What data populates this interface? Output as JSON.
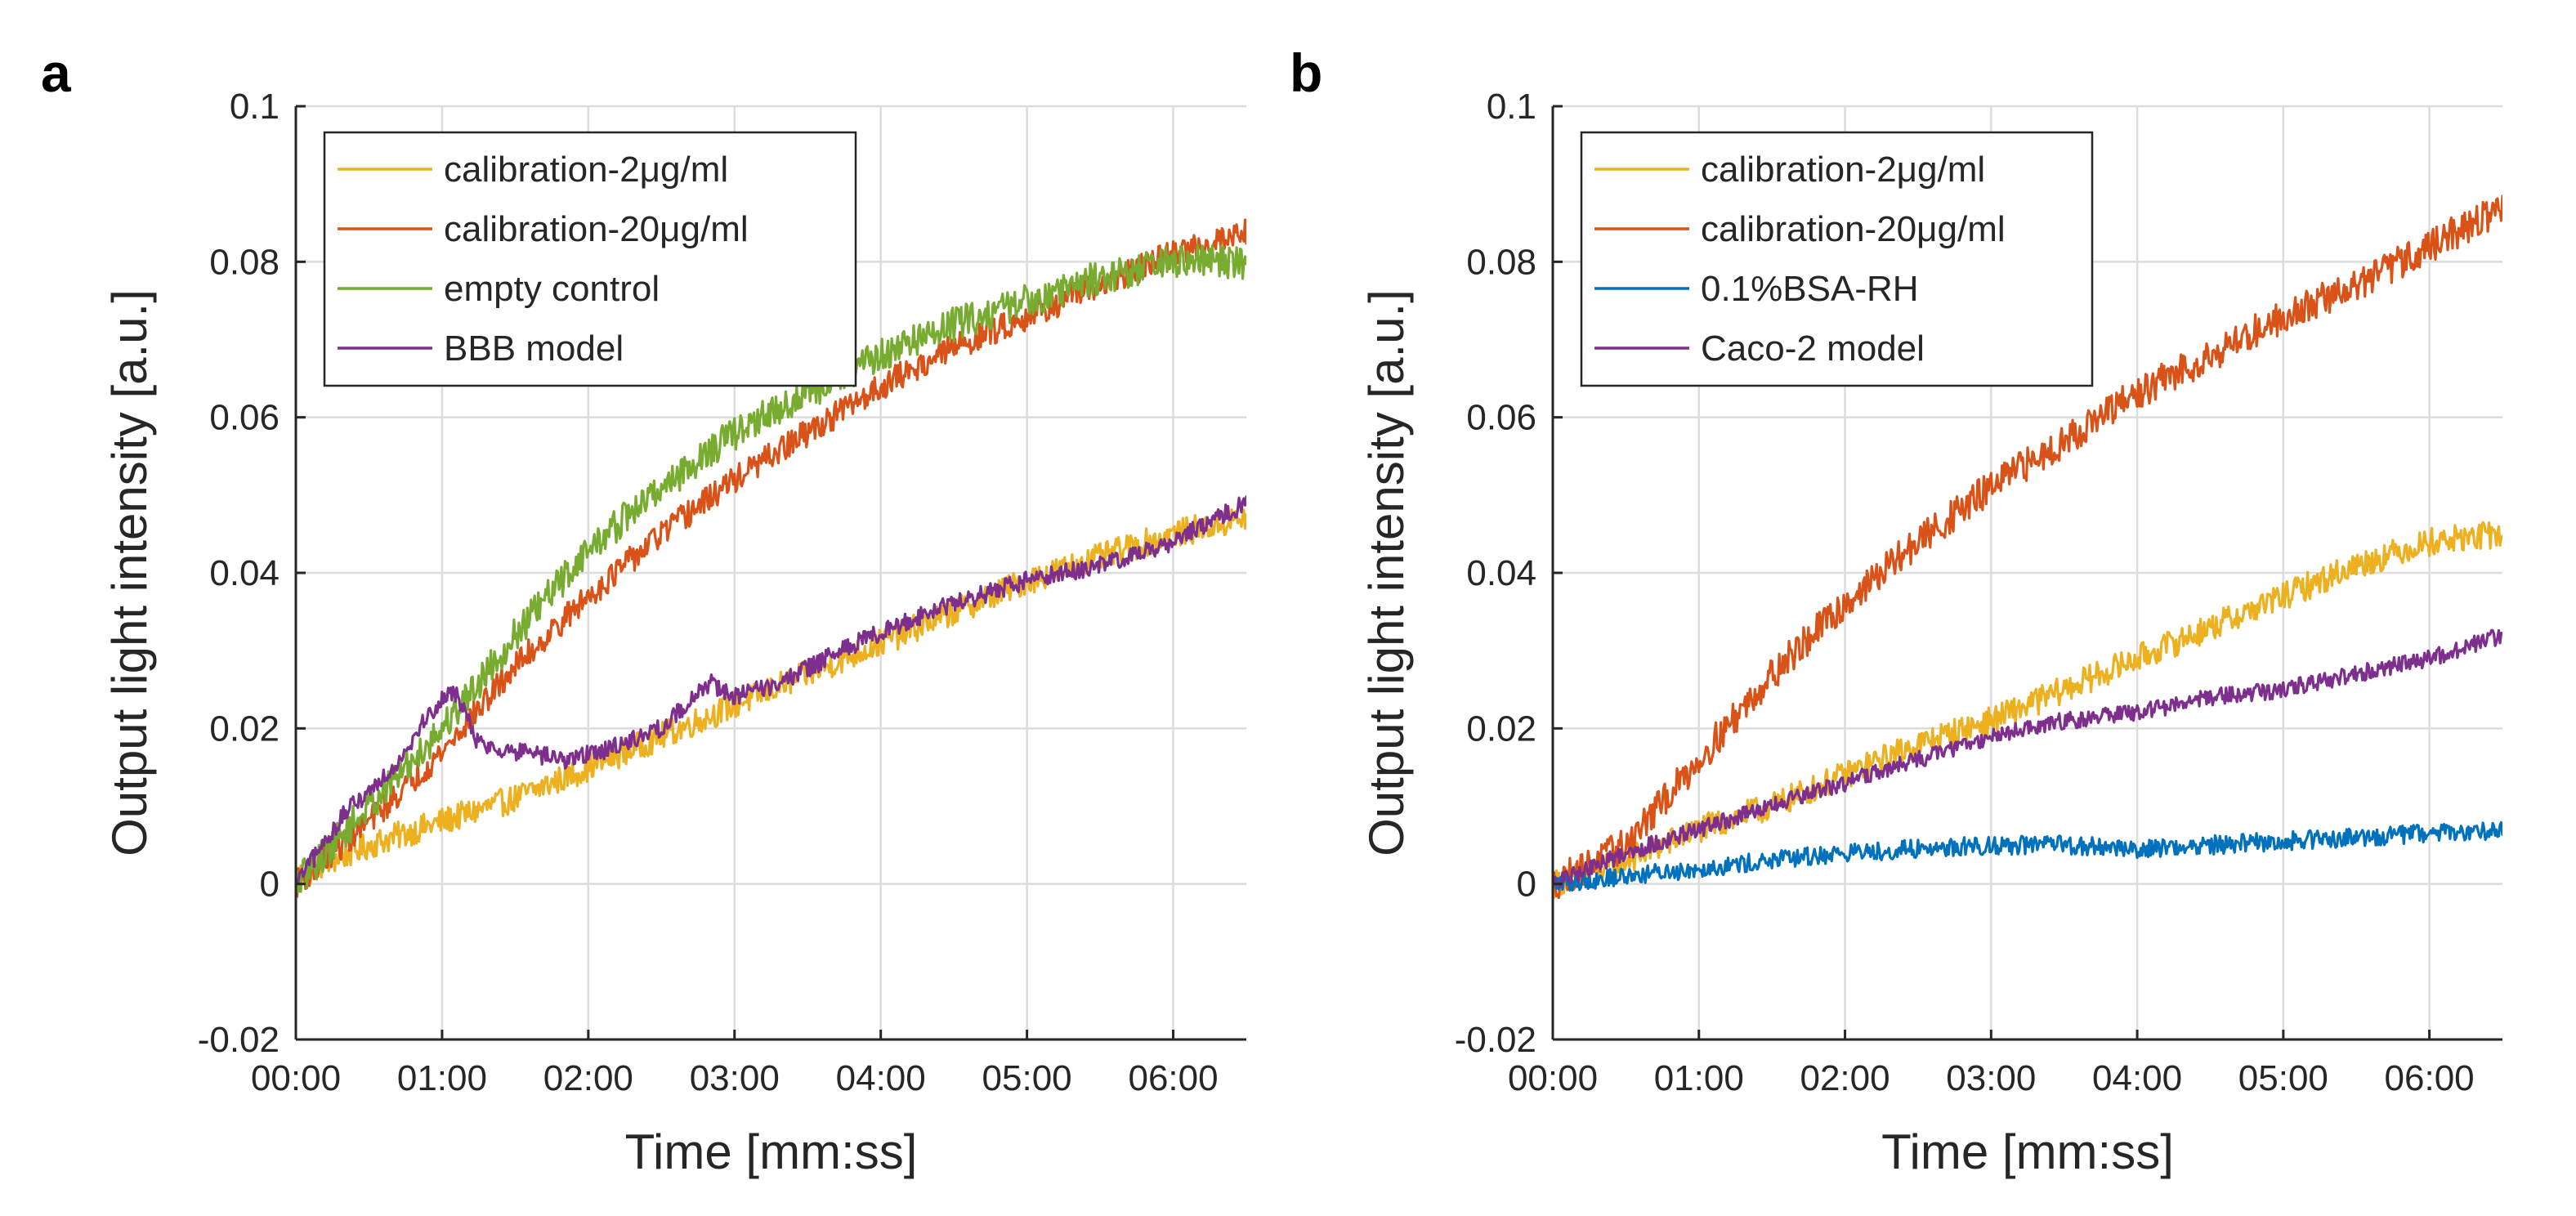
{
  "chart_data": [
    {
      "panel_label": "a",
      "type": "line",
      "title": "",
      "xlabel": "Time [mm:ss]",
      "ylabel": "Output light intensity [a.u.]",
      "xlim": [
        0,
        390
      ],
      "ylim": [
        -0.02,
        0.1
      ],
      "xticks": [
        0,
        60,
        120,
        180,
        240,
        300,
        360
      ],
      "xtick_labels": [
        "00:00",
        "01:00",
        "02:00",
        "03:00",
        "04:00",
        "05:00",
        "06:00"
      ],
      "yticks": [
        -0.02,
        0,
        0.02,
        0.04,
        0.06,
        0.08,
        0.1
      ],
      "ytick_labels": [
        "-0.02",
        "0",
        "0.02",
        "0.04",
        "0.06",
        "0.08",
        "0.1"
      ],
      "grid": true,
      "legend_position": "top-left",
      "series": [
        {
          "name": "calibration-2μg/ml",
          "color": "#EDB120",
          "noise": 0.0018,
          "x": [
            0,
            30,
            60,
            90,
            120,
            150,
            180,
            210,
            240,
            270,
            300,
            330,
            360,
            390
          ],
          "y": [
            0.001,
            0.005,
            0.008,
            0.011,
            0.015,
            0.019,
            0.023,
            0.027,
            0.031,
            0.035,
            0.039,
            0.042,
            0.045,
            0.047
          ]
        },
        {
          "name": "calibration-20μg/ml",
          "color": "#D95319",
          "noise": 0.0018,
          "x": [
            0,
            30,
            60,
            90,
            120,
            150,
            180,
            210,
            240,
            270,
            300,
            330,
            360,
            390
          ],
          "y": [
            0.0,
            0.008,
            0.017,
            0.028,
            0.037,
            0.045,
            0.052,
            0.058,
            0.064,
            0.069,
            0.073,
            0.077,
            0.081,
            0.084
          ]
        },
        {
          "name": "empty control",
          "color": "#77AC30",
          "noise": 0.0022,
          "x": [
            0,
            30,
            60,
            90,
            120,
            150,
            180,
            210,
            240,
            270,
            300,
            330,
            360,
            390
          ],
          "y": [
            0.0,
            0.01,
            0.02,
            0.032,
            0.043,
            0.051,
            0.058,
            0.063,
            0.068,
            0.072,
            0.075,
            0.078,
            0.08,
            0.08
          ]
        },
        {
          "name": "BBB model",
          "color": "#7E2F8E",
          "noise": 0.0012,
          "x": [
            0,
            20,
            40,
            55,
            65,
            75,
            90,
            110,
            125,
            150,
            170,
            180,
            200,
            230,
            260,
            300,
            330,
            360,
            390
          ],
          "y": [
            0.0,
            0.009,
            0.015,
            0.022,
            0.025,
            0.018,
            0.017,
            0.016,
            0.017,
            0.02,
            0.026,
            0.024,
            0.026,
            0.031,
            0.035,
            0.039,
            0.041,
            0.044,
            0.049
          ]
        }
      ]
    },
    {
      "panel_label": "b",
      "type": "line",
      "title": "",
      "xlabel": "Time [mm:ss]",
      "ylabel": "Output light intensity [a.u.]",
      "xlim": [
        0,
        390
      ],
      "ylim": [
        -0.02,
        0.1
      ],
      "xticks": [
        0,
        60,
        120,
        180,
        240,
        300,
        360
      ],
      "xtick_labels": [
        "00:00",
        "01:00",
        "02:00",
        "03:00",
        "04:00",
        "05:00",
        "06:00"
      ],
      "yticks": [
        -0.02,
        0,
        0.02,
        0.04,
        0.06,
        0.08,
        0.1
      ],
      "ytick_labels": [
        "-0.02",
        "0",
        "0.02",
        "0.04",
        "0.06",
        "0.08",
        "0.1"
      ],
      "grid": true,
      "legend_position": "top-left",
      "series": [
        {
          "name": "calibration-2μg/ml",
          "color": "#EDB120",
          "noise": 0.0018,
          "x": [
            0,
            30,
            60,
            90,
            120,
            150,
            180,
            210,
            240,
            270,
            300,
            330,
            360,
            390
          ],
          "y": [
            0.0,
            0.003,
            0.007,
            0.01,
            0.014,
            0.018,
            0.021,
            0.025,
            0.029,
            0.033,
            0.037,
            0.041,
            0.044,
            0.045
          ]
        },
        {
          "name": "calibration-20μg/ml",
          "color": "#D95319",
          "noise": 0.0022,
          "x": [
            0,
            30,
            60,
            90,
            120,
            150,
            180,
            210,
            240,
            270,
            300,
            330,
            360,
            390
          ],
          "y": [
            0.0,
            0.005,
            0.016,
            0.027,
            0.036,
            0.044,
            0.051,
            0.057,
            0.063,
            0.068,
            0.073,
            0.077,
            0.082,
            0.087
          ]
        },
        {
          "name": "0.1%BSA-RH",
          "color": "#0072BD",
          "noise": 0.0012,
          "x": [
            0,
            30,
            60,
            90,
            120,
            150,
            180,
            210,
            240,
            270,
            300,
            330,
            360,
            390
          ],
          "y": [
            0.0,
            0.001,
            0.002,
            0.003,
            0.004,
            0.0045,
            0.005,
            0.005,
            0.0045,
            0.005,
            0.0055,
            0.006,
            0.0065,
            0.007
          ]
        },
        {
          "name": "Caco-2 model",
          "color": "#7E2F8E",
          "noise": 0.0011,
          "x": [
            0,
            30,
            60,
            90,
            120,
            150,
            180,
            210,
            240,
            270,
            300,
            330,
            360,
            390
          ],
          "y": [
            0.0,
            0.004,
            0.007,
            0.01,
            0.013,
            0.016,
            0.019,
            0.021,
            0.022,
            0.024,
            0.025,
            0.027,
            0.029,
            0.032
          ]
        }
      ]
    }
  ]
}
